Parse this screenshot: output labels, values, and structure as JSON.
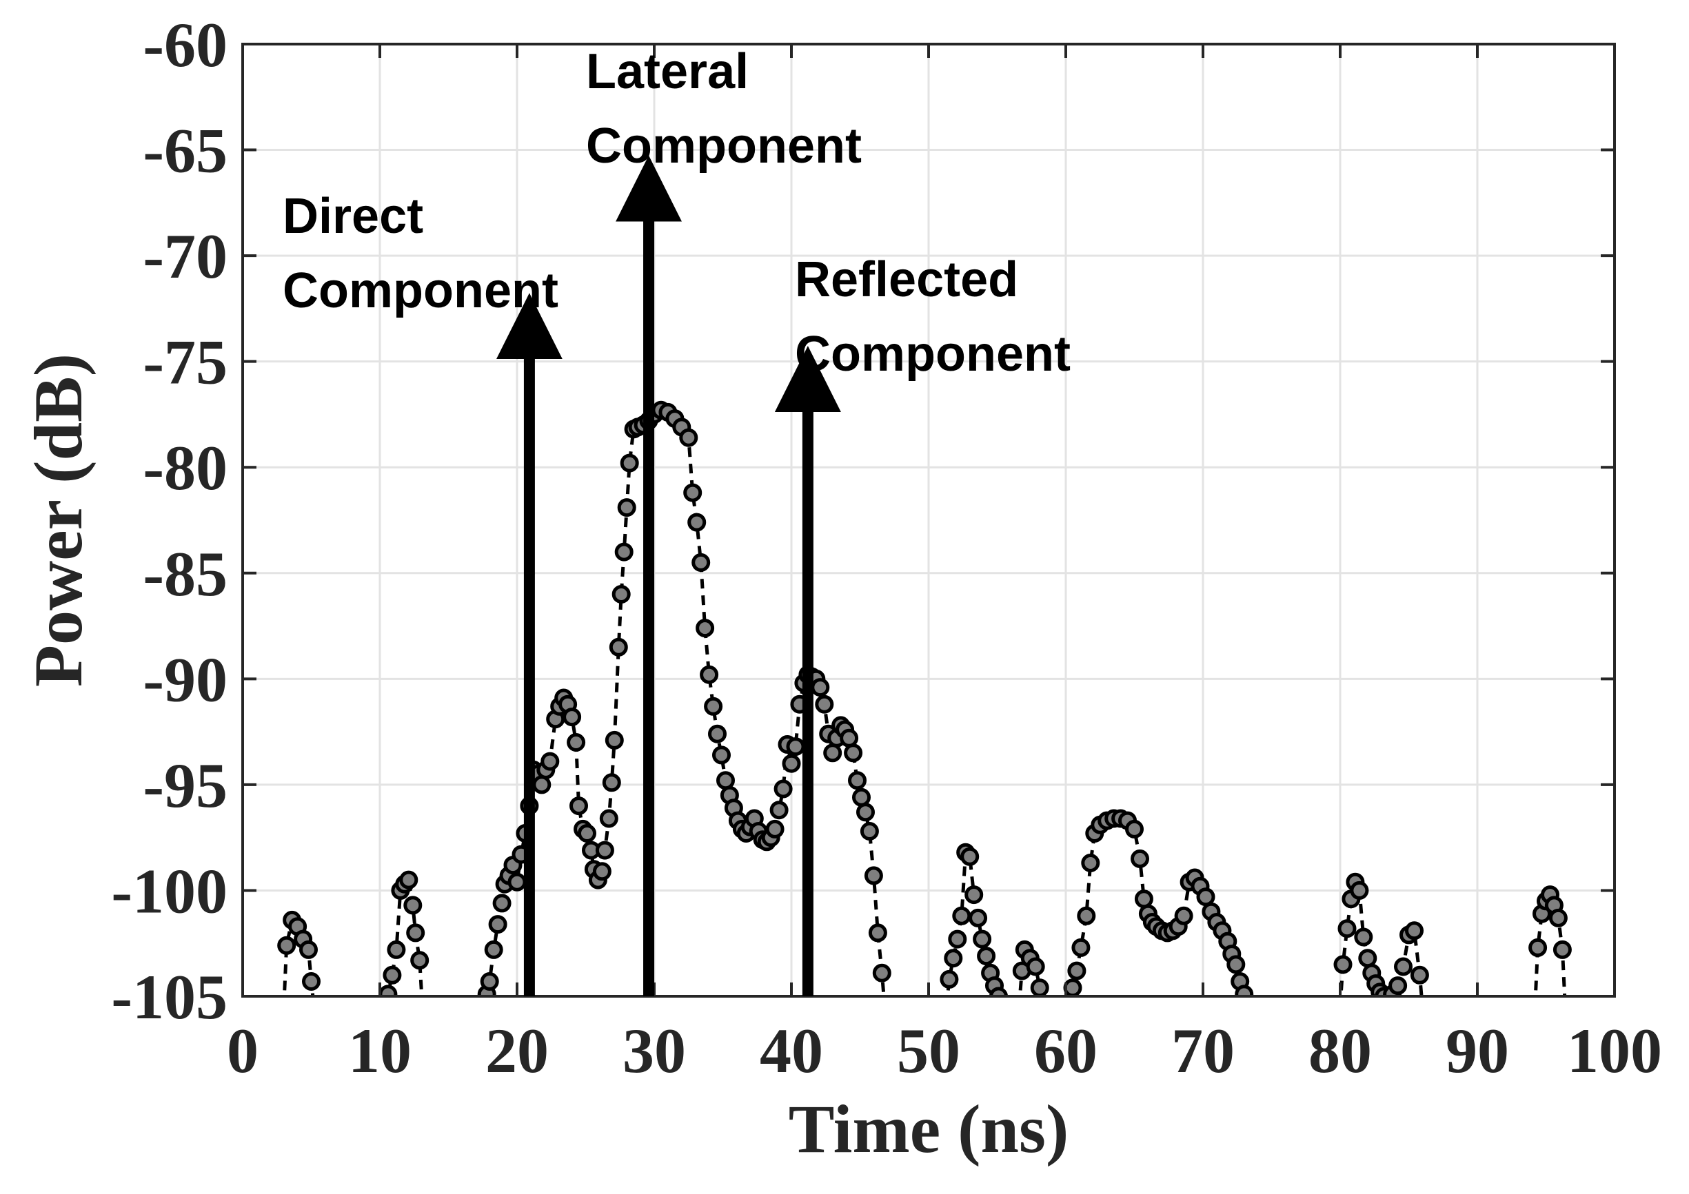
{
  "chart_data": {
    "type": "scatter",
    "xlabel": "Time (ns)",
    "ylabel": "Power (dB)",
    "xlim": [
      0,
      100
    ],
    "ylim": [
      -105,
      -60
    ],
    "xticks": [
      "0",
      "10",
      "20",
      "30",
      "40",
      "50",
      "60",
      "70",
      "80",
      "90",
      "100"
    ],
    "yticks": [
      "-60",
      "-65",
      "-70",
      "-75",
      "-80",
      "-85",
      "-90",
      "-95",
      "-100",
      "-105"
    ],
    "grid": true,
    "series": [
      {
        "style": "dashed line with circular markers",
        "color": "#000000",
        "marker_fill": "#7f7f7f",
        "segments": [
          [
            [
              3.0,
              -105.5
            ],
            [
              3.2,
              -102.6
            ],
            [
              3.6,
              -101.4
            ],
            [
              4.0,
              -101.7
            ],
            [
              4.4,
              -102.3
            ],
            [
              4.8,
              -102.8
            ],
            [
              5.0,
              -104.3
            ],
            [
              5.2,
              -105.5
            ]
          ],
          [
            [
              10.5,
              -105.5
            ],
            [
              10.6,
              -104.9
            ],
            [
              10.9,
              -104.0
            ],
            [
              11.2,
              -102.8
            ],
            [
              11.5,
              -100.0
            ],
            [
              11.8,
              -99.7
            ],
            [
              12.1,
              -99.5
            ],
            [
              12.4,
              -100.7
            ],
            [
              12.6,
              -102.0
            ],
            [
              12.9,
              -103.3
            ],
            [
              13.1,
              -105.5
            ]
          ],
          [
            [
              17.6,
              -105.5
            ],
            [
              17.8,
              -104.9
            ],
            [
              18.0,
              -104.3
            ],
            [
              18.3,
              -102.8
            ],
            [
              18.6,
              -101.6
            ],
            [
              18.9,
              -100.6
            ],
            [
              19.1,
              -99.7
            ],
            [
              19.4,
              -99.3
            ],
            [
              19.7,
              -98.8
            ],
            [
              20.0,
              -99.6
            ],
            [
              20.3,
              -98.3
            ],
            [
              20.6,
              -97.3
            ],
            [
              20.9,
              -96.0
            ],
            [
              21.2,
              -94.3
            ],
            [
              21.5,
              -94.5
            ],
            [
              21.8,
              -95.0
            ],
            [
              22.1,
              -94.3
            ],
            [
              22.4,
              -93.9
            ],
            [
              22.8,
              -91.9
            ],
            [
              23.1,
              -91.3
            ],
            [
              23.4,
              -90.9
            ],
            [
              23.7,
              -91.2
            ],
            [
              24.0,
              -91.8
            ],
            [
              24.3,
              -93.0
            ],
            [
              24.5,
              -96.0
            ],
            [
              24.8,
              -97.1
            ],
            [
              25.1,
              -97.3
            ],
            [
              25.4,
              -98.1
            ],
            [
              25.6,
              -99.0
            ],
            [
              25.9,
              -99.5
            ],
            [
              26.2,
              -99.1
            ],
            [
              26.4,
              -98.1
            ],
            [
              26.7,
              -96.6
            ],
            [
              26.9,
              -94.9
            ],
            [
              27.1,
              -92.9
            ],
            [
              27.4,
              -88.5
            ],
            [
              27.6,
              -86.0
            ],
            [
              27.8,
              -84.0
            ],
            [
              28.0,
              -81.9
            ],
            [
              28.2,
              -79.8
            ],
            [
              28.5,
              -78.2
            ],
            [
              28.8,
              -78.1
            ],
            [
              29.2,
              -78.0
            ],
            [
              29.6,
              -77.8
            ],
            [
              30.0,
              -77.5
            ],
            [
              30.5,
              -77.3
            ],
            [
              31.0,
              -77.4
            ],
            [
              31.5,
              -77.7
            ],
            [
              32.0,
              -78.1
            ],
            [
              32.5,
              -78.6
            ],
            [
              32.8,
              -81.2
            ],
            [
              33.1,
              -82.6
            ],
            [
              33.4,
              -84.5
            ],
            [
              33.7,
              -87.6
            ],
            [
              34.0,
              -89.8
            ],
            [
              34.3,
              -91.3
            ],
            [
              34.6,
              -92.6
            ],
            [
              34.9,
              -93.6
            ],
            [
              35.2,
              -94.8
            ],
            [
              35.5,
              -95.5
            ],
            [
              35.8,
              -96.1
            ],
            [
              36.1,
              -96.7
            ],
            [
              36.4,
              -97.1
            ],
            [
              36.7,
              -97.3
            ],
            [
              37.0,
              -97.0
            ],
            [
              37.3,
              -96.6
            ],
            [
              37.6,
              -97.2
            ],
            [
              37.9,
              -97.6
            ],
            [
              38.2,
              -97.7
            ],
            [
              38.5,
              -97.5
            ],
            [
              38.8,
              -97.1
            ],
            [
              39.1,
              -96.2
            ],
            [
              39.4,
              -95.2
            ],
            [
              39.7,
              -93.1
            ],
            [
              40.0,
              -94.0
            ],
            [
              40.3,
              -93.2
            ],
            [
              40.6,
              -91.2
            ],
            [
              40.9,
              -90.2
            ],
            [
              41.2,
              -89.8
            ],
            [
              41.5,
              -89.9
            ],
            [
              41.8,
              -90.0
            ],
            [
              42.1,
              -90.4
            ],
            [
              42.4,
              -91.2
            ],
            [
              42.7,
              -92.6
            ],
            [
              43.0,
              -93.5
            ],
            [
              43.3,
              -92.8
            ],
            [
              43.6,
              -92.2
            ],
            [
              43.9,
              -92.4
            ],
            [
              44.2,
              -92.8
            ],
            [
              44.5,
              -93.5
            ],
            [
              44.8,
              -94.8
            ],
            [
              45.1,
              -95.6
            ],
            [
              45.4,
              -96.3
            ],
            [
              45.7,
              -97.2
            ],
            [
              46.0,
              -99.3
            ],
            [
              46.3,
              -102.0
            ],
            [
              46.6,
              -103.9
            ],
            [
              46.8,
              -105.5
            ]
          ],
          [
            [
              51.3,
              -105.5
            ],
            [
              51.5,
              -104.2
            ],
            [
              51.8,
              -103.2
            ],
            [
              52.1,
              -102.3
            ],
            [
              52.4,
              -101.2
            ],
            [
              52.7,
              -98.2
            ],
            [
              53.0,
              -98.4
            ],
            [
              53.3,
              -100.2
            ],
            [
              53.6,
              -101.3
            ],
            [
              53.9,
              -102.3
            ],
            [
              54.2,
              -103.1
            ],
            [
              54.5,
              -103.9
            ],
            [
              54.8,
              -104.5
            ],
            [
              55.1,
              -105.0
            ],
            [
              55.3,
              -105.5
            ]
          ],
          [
            [
              56.6,
              -105.5
            ],
            [
              56.8,
              -103.8
            ],
            [
              57.0,
              -102.8
            ],
            [
              57.4,
              -103.2
            ],
            [
              57.8,
              -103.6
            ],
            [
              58.1,
              -104.6
            ],
            [
              58.3,
              -105.5
            ]
          ],
          [
            [
              60.3,
              -105.5
            ],
            [
              60.5,
              -104.6
            ],
            [
              60.8,
              -103.8
            ],
            [
              61.1,
              -102.7
            ],
            [
              61.5,
              -101.2
            ],
            [
              61.8,
              -98.7
            ],
            [
              62.1,
              -97.3
            ],
            [
              62.5,
              -96.9
            ],
            [
              63.0,
              -96.7
            ],
            [
              63.5,
              -96.6
            ],
            [
              64.0,
              -96.6
            ],
            [
              64.5,
              -96.7
            ],
            [
              65.0,
              -97.1
            ],
            [
              65.4,
              -98.5
            ],
            [
              65.7,
              -100.4
            ],
            [
              66.0,
              -101.1
            ],
            [
              66.3,
              -101.5
            ],
            [
              66.6,
              -101.7
            ],
            [
              67.0,
              -101.9
            ],
            [
              67.4,
              -102.0
            ],
            [
              67.8,
              -101.9
            ],
            [
              68.2,
              -101.7
            ],
            [
              68.6,
              -101.2
            ],
            [
              69.0,
              -99.6
            ],
            [
              69.4,
              -99.4
            ],
            [
              69.8,
              -99.8
            ],
            [
              70.2,
              -100.3
            ],
            [
              70.6,
              -101.0
            ],
            [
              71.0,
              -101.5
            ],
            [
              71.4,
              -101.9
            ],
            [
              71.8,
              -102.4
            ],
            [
              72.1,
              -103.0
            ],
            [
              72.4,
              -103.5
            ],
            [
              72.7,
              -104.3
            ],
            [
              73.0,
              -104.9
            ],
            [
              73.2,
              -105.5
            ]
          ],
          [
            [
              80.0,
              -105.5
            ],
            [
              80.2,
              -103.5
            ],
            [
              80.5,
              -101.8
            ],
            [
              80.8,
              -100.4
            ],
            [
              81.1,
              -99.6
            ],
            [
              81.4,
              -100.0
            ],
            [
              81.7,
              -102.2
            ],
            [
              82.0,
              -103.2
            ],
            [
              82.3,
              -103.9
            ],
            [
              82.6,
              -104.4
            ],
            [
              82.9,
              -104.8
            ],
            [
              83.2,
              -105.0
            ],
            [
              83.5,
              -105.1
            ],
            [
              83.8,
              -104.9
            ],
            [
              84.2,
              -104.5
            ],
            [
              84.6,
              -103.6
            ],
            [
              85.0,
              -102.1
            ],
            [
              85.4,
              -101.9
            ],
            [
              85.8,
              -104.0
            ],
            [
              86.0,
              -105.5
            ]
          ],
          [
            [
              94.2,
              -105.5
            ],
            [
              94.4,
              -102.7
            ],
            [
              94.7,
              -101.1
            ],
            [
              95.0,
              -100.5
            ],
            [
              95.3,
              -100.2
            ],
            [
              95.6,
              -100.7
            ],
            [
              95.9,
              -101.3
            ],
            [
              96.2,
              -102.8
            ],
            [
              96.4,
              -105.5
            ]
          ]
        ]
      }
    ],
    "annotations": [
      {
        "lines": [
          "Direct",
          "Component"
        ],
        "arrow_x": 20.9,
        "arrow_from_y": -105,
        "arrow_to_y": -73
      },
      {
        "lines": [
          "Lateral",
          "Component"
        ],
        "arrow_x": 29.6,
        "arrow_from_y": -105,
        "arrow_to_y": -66.5
      },
      {
        "lines": [
          "Reflected",
          "Component"
        ],
        "arrow_x": 41.2,
        "arrow_from_y": -105,
        "arrow_to_y": -75.5
      }
    ]
  }
}
